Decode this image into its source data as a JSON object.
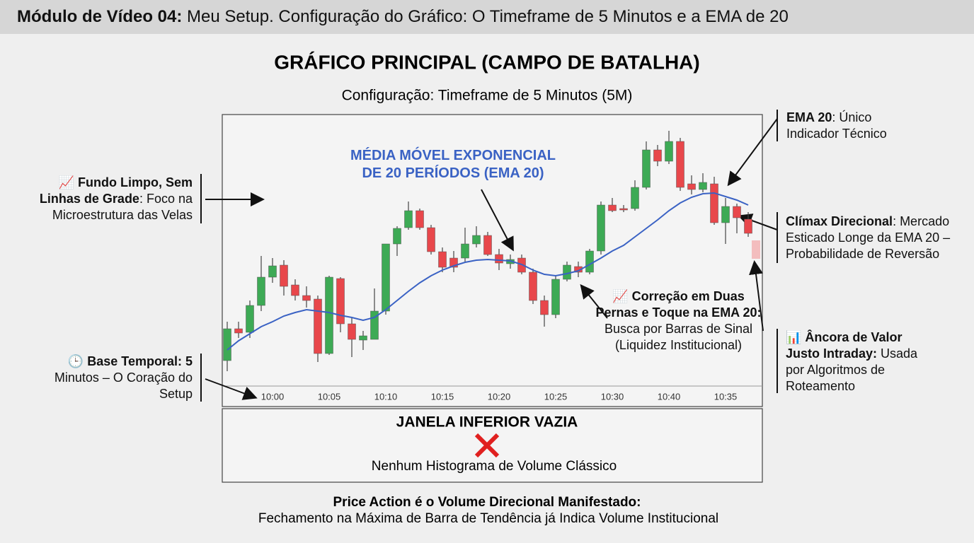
{
  "header": {
    "bold": "Módulo de Vídeo 04:",
    "text": " Meu Setup. Configuração do Gráfico: O Timeframe de 5 Minutos e a EMA de 20"
  },
  "title": "GRÁFICO PRINCIPAL (CAMPO DE BATALHA)",
  "subtitle": "Configuração: Timeframe de 5 Minutos (5M)",
  "chart_data": {
    "type": "candlestick",
    "categories": [
      null,
      null,
      null,
      null,
      "10:00",
      null,
      null,
      null,
      null,
      "10:05",
      null,
      null,
      null,
      null,
      "10:10",
      null,
      null,
      null,
      null,
      "10:15",
      null,
      null,
      null,
      null,
      "10:20",
      null,
      null,
      null,
      null,
      "10:25",
      null,
      null,
      null,
      null,
      "10:30",
      null,
      null,
      null,
      null,
      "10:40",
      null,
      null,
      null,
      null,
      "10:35",
      null,
      null
    ],
    "open": [
      35,
      80,
      75,
      113,
      153,
      170,
      142,
      127,
      122,
      45,
      151,
      87,
      64,
      65,
      105,
      200,
      223,
      247,
      223,
      189,
      180,
      180,
      200,
      212,
      185,
      172,
      180,
      160,
      120,
      100,
      150,
      168,
      160,
      190,
      255,
      250,
      250,
      280,
      333,
      317,
      345,
      285,
      277,
      285,
      230,
      253,
      235
    ],
    "high": [
      90,
      90,
      120,
      183,
      180,
      177,
      150,
      140,
      127,
      155,
      153,
      95,
      77,
      137,
      200,
      225,
      260,
      250,
      227,
      195,
      190,
      223,
      225,
      217,
      193,
      185,
      185,
      165,
      127,
      155,
      175,
      175,
      193,
      260,
      265,
      255,
      290,
      345,
      340,
      360,
      350,
      297,
      300,
      295,
      265,
      257,
      245
    ],
    "low": [
      20,
      67,
      67,
      105,
      145,
      127,
      120,
      110,
      33,
      43,
      75,
      40,
      50,
      65,
      100,
      183,
      220,
      220,
      185,
      160,
      160,
      175,
      195,
      183,
      163,
      165,
      157,
      115,
      83,
      95,
      147,
      153,
      157,
      185,
      245,
      245,
      247,
      277,
      310,
      313,
      275,
      270,
      273,
      227,
      200,
      215,
      210
    ],
    "close": [
      80,
      74,
      113,
      153,
      169,
      140,
      127,
      120,
      45,
      153,
      87,
      65,
      70,
      105,
      200,
      222,
      247,
      223,
      189,
      167,
      167,
      200,
      212,
      185,
      173,
      178,
      160,
      120,
      100,
      150,
      170,
      160,
      190,
      255,
      247,
      248,
      280,
      333,
      317,
      345,
      280,
      277,
      287,
      230,
      253,
      237,
      215
    ],
    "up_color": "#3daa55",
    "down_color": "#e8474b",
    "ema_label": "MÉDIA MÓVEL EXPONENCIAL DE 20 PERÍODOS (EMA 20)",
    "ema_values": [
      50,
      63,
      73,
      83,
      90,
      98,
      103,
      107,
      105,
      103,
      99,
      96,
      92,
      96,
      107,
      120,
      133,
      145,
      155,
      163,
      169,
      174,
      177,
      178,
      177,
      176,
      171,
      163,
      157,
      155,
      158,
      162,
      171,
      180,
      190,
      198,
      210,
      222,
      234,
      247,
      258,
      266,
      271,
      272,
      267,
      262,
      255
    ],
    "ema_color": "#3a62c4",
    "ylim": [
      0,
      383
    ]
  },
  "annotations": {
    "clean": {
      "bold": "📈 Fundo Limpo, Sem Linhas de Grade",
      "text": ": Foco na Microestrutura das Velas"
    },
    "base": {
      "bold": "🕒 Base Temporal: 5",
      "text": " Minutos – O Coração do Setup"
    },
    "ema": {
      "bold": "EMA 20",
      "text": ": Único Indicador Técnico"
    },
    "climax": {
      "bold": "Clímax Direcional",
      "text": ": Mercado Esticado Longe da EMA 20 – Probabilidade de Reversão"
    },
    "anchor": {
      "bold": "📊 Âncora de Valor Justo Intraday:",
      "text": " Usada por Algoritmos de Roteamento"
    },
    "correction": {
      "bold": "📈 Correção em Duas Pernas e Toque na EMA 20:",
      "text": " Busca por Barras de Sinal (Liquidez Institucional)"
    }
  },
  "lower_panel": {
    "title": "JANELA INFERIOR VAZIA",
    "text": "Nenhum Histograma de Volume Clássico"
  },
  "footer": {
    "bold": "Price Action é o Volume Direcional Manifestado:",
    "text": "Fechamento na Máxima de Barra de Tendência já Indica Volume Institucional"
  }
}
